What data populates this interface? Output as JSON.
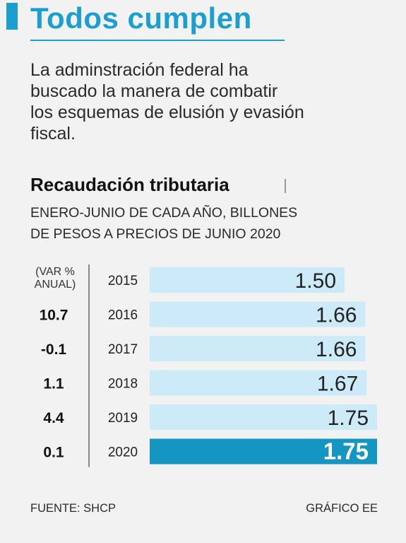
{
  "colors": {
    "accent": "#1a9fd0",
    "bar_light": "#cdeaf8",
    "bar_highlight": "#1596c2",
    "axis_line": "#444444",
    "text_dark": "#222222",
    "text_on_highlight": "#ffffff"
  },
  "header": {
    "headline": "Todos cumplen",
    "intro_lines": [
      "La adminstración federal ha",
      "buscado la manera de combatir",
      "los esquemas de elusión y evasión",
      "fiscal."
    ]
  },
  "chart_data": {
    "type": "bar",
    "orientation": "horizontal",
    "title": "Recaudación tributaria",
    "subtitle_lines": [
      "ENERO-JUNIO DE CADA AÑO, BILLONES",
      "DE PESOS A PRECIOS DE JUNIO 2020"
    ],
    "variation_header_lines": [
      "(VAR %",
      "ANUAL)"
    ],
    "categories": [
      "2015",
      "2016",
      "2017",
      "2018",
      "2019",
      "2020"
    ],
    "values": [
      1.5,
      1.66,
      1.66,
      1.67,
      1.75,
      1.75
    ],
    "value_labels": [
      "1.50",
      "1.66",
      "1.66",
      "1.67",
      "1.75",
      "1.75"
    ],
    "variation_labels": [
      "",
      "10.7",
      "-0.1",
      "1.1",
      "4.4",
      "0.1"
    ],
    "highlight_index": 5,
    "grid": false,
    "legend": "none"
  },
  "footer": {
    "source": "FUENTE: SHCP",
    "credit": "GRÁFICO EE"
  }
}
